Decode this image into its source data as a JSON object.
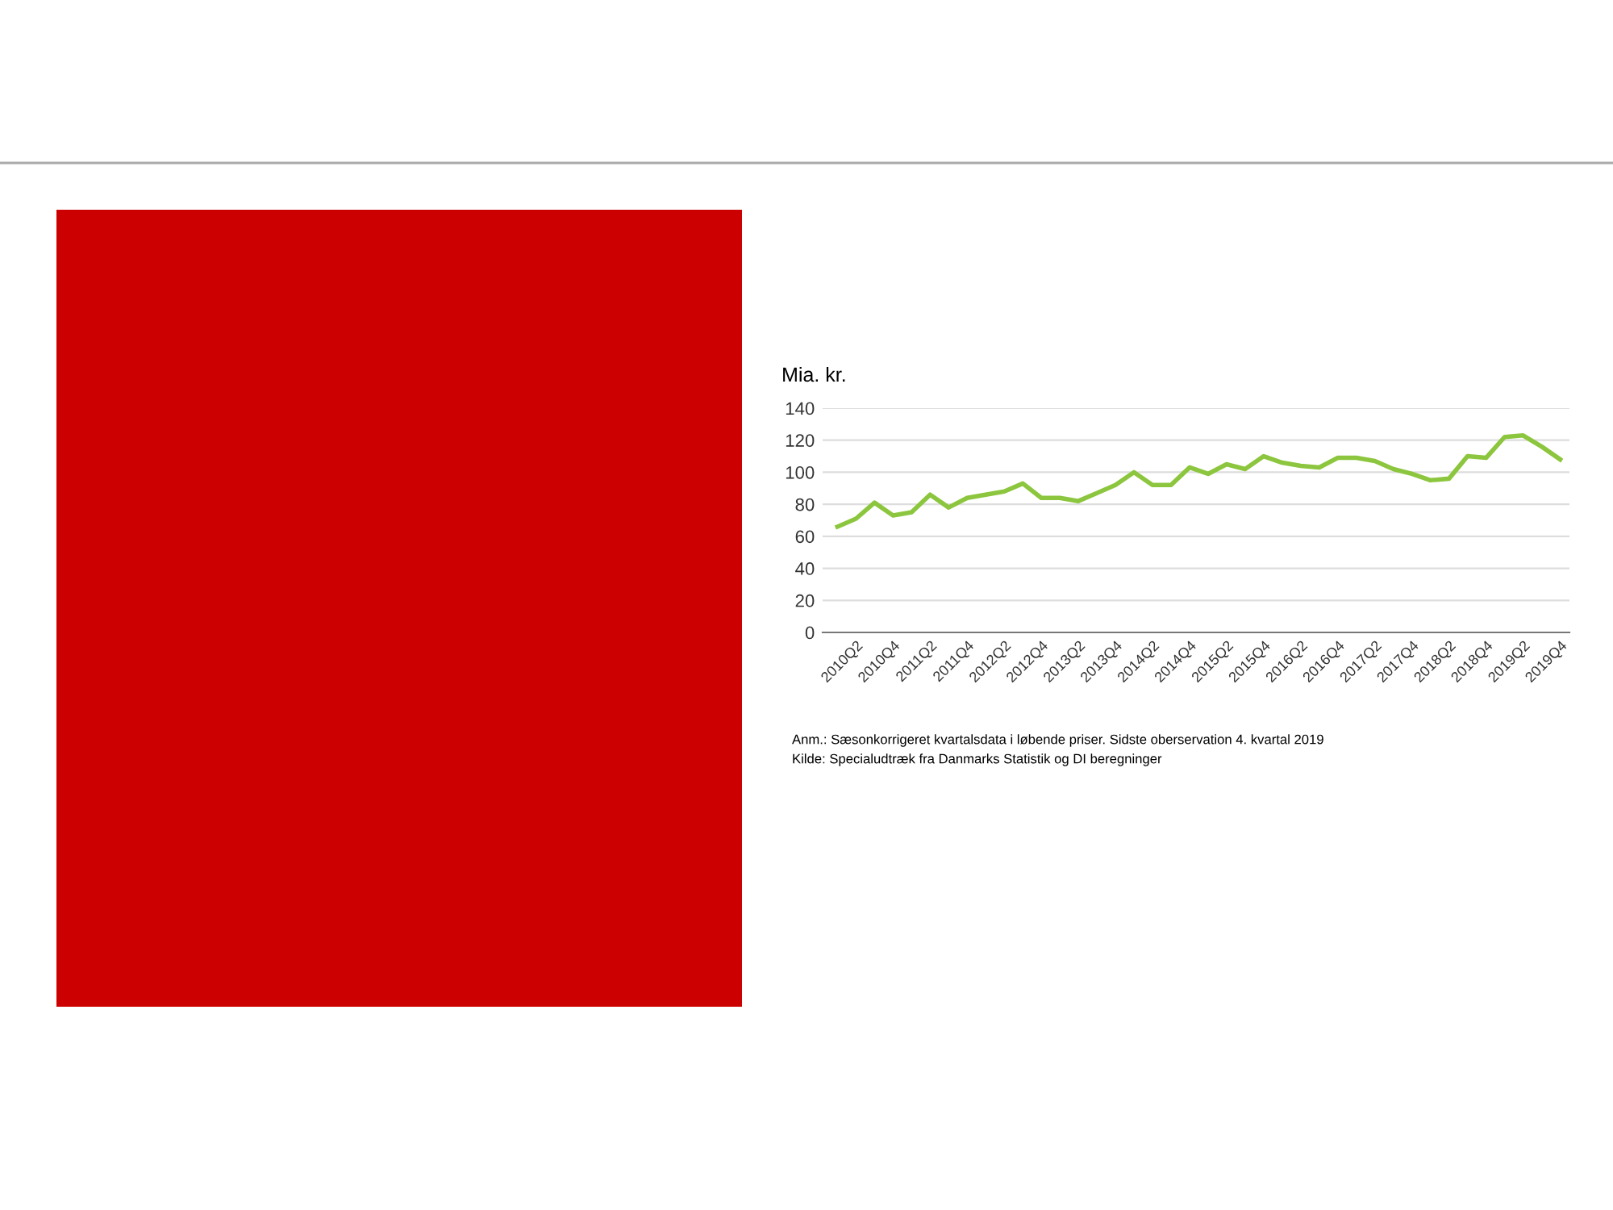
{
  "chart_data": {
    "type": "line",
    "ylabel": "Mia. kr.",
    "categories": [
      null,
      "2010Q2",
      null,
      "2010Q4",
      null,
      "2011Q2",
      null,
      "2011Q4",
      null,
      "2012Q2",
      null,
      "2012Q4",
      null,
      "2013Q2",
      null,
      "2013Q4",
      null,
      "2014Q2",
      null,
      "2014Q4",
      null,
      "2015Q2",
      null,
      "2015Q4",
      null,
      "2016Q2",
      null,
      "2016Q4",
      null,
      "2017Q2",
      null,
      "2017Q4",
      null,
      "2018Q2",
      null,
      "2018Q4",
      null,
      "2019Q2",
      null,
      "2019Q4"
    ],
    "series": [
      {
        "color": "#8cc63e",
        "values": [
          66,
          71,
          81,
          73,
          75,
          86,
          78,
          84,
          86,
          88,
          93,
          84,
          84,
          82,
          87,
          92,
          100,
          92,
          92,
          103,
          99,
          105,
          102,
          110,
          106,
          104,
          103,
          109,
          109,
          107,
          102,
          99,
          95,
          96,
          110,
          109,
          122,
          123,
          116,
          108
        ]
      }
    ],
    "ylim": [
      0,
      140
    ],
    "yticks": [
      0,
      20,
      40,
      60,
      80,
      100,
      120,
      140
    ],
    "grid": "y",
    "legend": false,
    "marker": "none",
    "line_style": "solid",
    "annotations": [
      "Anm.: Sæsonkorrigeret kvartalsdata i løbende priser. Sidste oberservation 4. kvartal 2019",
      "Kilde: Specialudtræk fra Danmarks Statistik og DI beregninger"
    ]
  }
}
